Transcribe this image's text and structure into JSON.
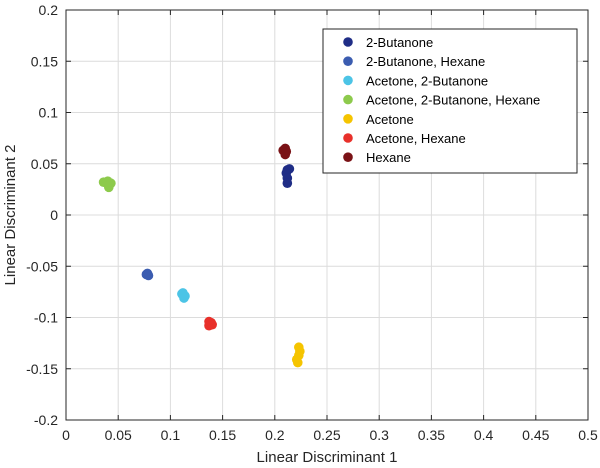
{
  "chart_data": {
    "type": "scatter",
    "title": "",
    "xlabel": "Linear Discriminant 1",
    "ylabel": "Linear Discriminant 2",
    "xlim": [
      0,
      0.5
    ],
    "ylim": [
      -0.2,
      0.2
    ],
    "grid": true,
    "legend_position": "top-right",
    "x_ticks": [
      0,
      0.05,
      0.1,
      0.15,
      0.2,
      0.25,
      0.3,
      0.35,
      0.4,
      0.45,
      0.5
    ],
    "x_tick_labels": [
      "0",
      "0.05",
      "0.1",
      "0.15",
      "0.2",
      "0.25",
      "0.3",
      "0.35",
      "0.4",
      "0.45",
      "0.5"
    ],
    "y_ticks": [
      -0.2,
      -0.15,
      -0.1,
      -0.05,
      0,
      0.05,
      0.1,
      0.15,
      0.2
    ],
    "y_tick_labels": [
      "-0.2",
      "-0.15",
      "-0.1",
      "-0.05",
      "0",
      "0.05",
      "0.1",
      "0.15",
      "0.2"
    ],
    "series": [
      {
        "name": "2-Butanone",
        "color": "#1f2d86",
        "points": [
          [
            0.212,
            0.044
          ],
          [
            0.214,
            0.045
          ],
          [
            0.211,
            0.041
          ],
          [
            0.212,
            0.036
          ],
          [
            0.212,
            0.031
          ]
        ]
      },
      {
        "name": "2-Butanone, Hexane",
        "color": "#3b5cb0",
        "points": [
          [
            0.077,
            -0.058
          ],
          [
            0.079,
            -0.059
          ],
          [
            0.078,
            -0.057
          ]
        ]
      },
      {
        "name": "Acetone, 2-Butanone",
        "color": "#4cc4e6",
        "points": [
          [
            0.112,
            -0.076
          ],
          [
            0.114,
            -0.079
          ],
          [
            0.113,
            -0.081
          ],
          [
            0.111,
            -0.077
          ]
        ]
      },
      {
        "name": "Acetone, 2-Butanone, Hexane",
        "color": "#8dca4c",
        "points": [
          [
            0.036,
            0.032
          ],
          [
            0.04,
            0.033
          ],
          [
            0.043,
            0.031
          ],
          [
            0.041,
            0.027
          ]
        ]
      },
      {
        "name": "Acetone",
        "color": "#f5c400",
        "points": [
          [
            0.223,
            -0.129
          ],
          [
            0.224,
            -0.133
          ],
          [
            0.223,
            -0.137
          ],
          [
            0.221,
            -0.141
          ],
          [
            0.222,
            -0.144
          ]
        ]
      },
      {
        "name": "Acetone, Hexane",
        "color": "#e8302a",
        "points": [
          [
            0.137,
            -0.108
          ],
          [
            0.139,
            -0.105
          ],
          [
            0.14,
            -0.107
          ],
          [
            0.137,
            -0.104
          ]
        ]
      },
      {
        "name": "Hexane",
        "color": "#7a1216",
        "points": [
          [
            0.208,
            0.063
          ],
          [
            0.21,
            0.065
          ],
          [
            0.211,
            0.062
          ],
          [
            0.21,
            0.059
          ]
        ]
      }
    ]
  }
}
